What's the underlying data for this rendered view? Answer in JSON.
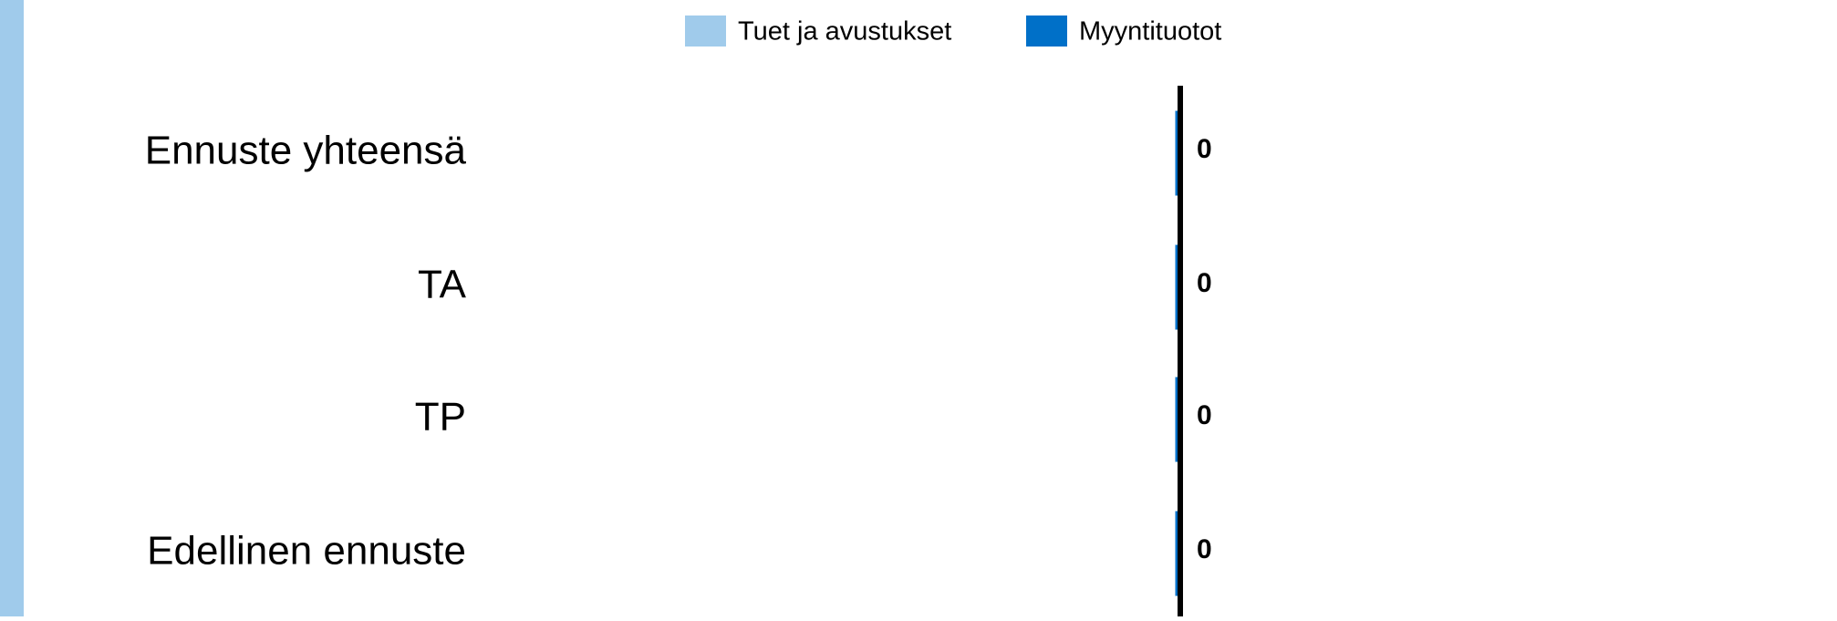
{
  "chart_data": {
    "type": "stacked_barh",
    "categories": [
      "Ennuste yhteensä",
      "TA",
      "TP",
      "Edellinen ennuste"
    ],
    "series": [
      {
        "name": "Tuet ja avustukset",
        "color": "#a0cbeb",
        "values": [
          0,
          0,
          0,
          0
        ]
      },
      {
        "name": "Myyntituotot",
        "color": "#0070c8",
        "values": [
          0,
          0,
          0,
          0
        ]
      }
    ],
    "xlim": [
      -1,
      1
    ],
    "legend": "top"
  }
}
